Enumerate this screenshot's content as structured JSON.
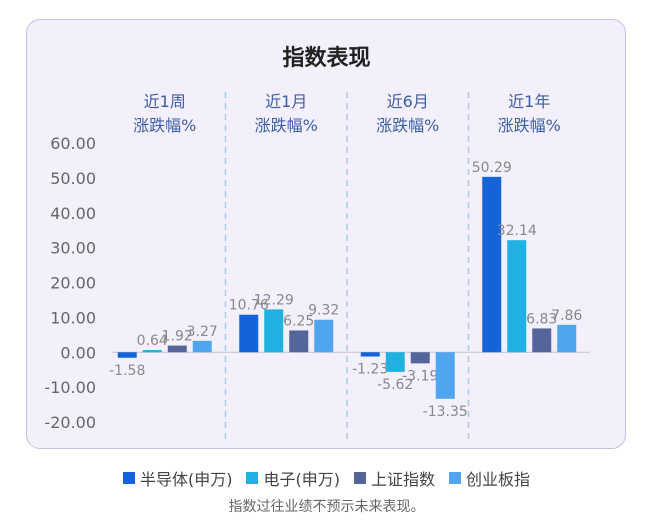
{
  "chart_data": {
    "type": "bar",
    "title": "指数表现",
    "categories": [
      {
        "line1": "近1周",
        "line2": "涨跌幅%"
      },
      {
        "line1": "近1月",
        "line2": "涨跌幅%"
      },
      {
        "line1": "近6月",
        "line2": "涨跌幅%"
      },
      {
        "line1": "近1年",
        "line2": "涨跌幅%"
      }
    ],
    "series": [
      {
        "name": "半导体(申万)",
        "color": "#1463d8",
        "values": [
          -1.58,
          10.76,
          -1.23,
          50.29
        ]
      },
      {
        "name": "电子(申万)",
        "color": "#1fb1e2",
        "values": [
          0.64,
          12.29,
          -5.62,
          32.14
        ]
      },
      {
        "name": "上证指数",
        "color": "#55659a",
        "values": [
          1.92,
          6.25,
          -3.19,
          6.83
        ]
      },
      {
        "name": "创业板指",
        "color": "#4fa5ee",
        "values": [
          3.27,
          9.32,
          -13.35,
          7.86
        ]
      }
    ],
    "value_labels": [
      [
        "-1.58",
        "10.76",
        "-1.23",
        "50.29"
      ],
      [
        "0.64",
        "12.29",
        "-5.62",
        "32.14"
      ],
      [
        "1.92",
        "6.25",
        "-3.19",
        "6.83"
      ],
      [
        "3.27",
        "9.32",
        "-13.35",
        "7.86"
      ]
    ],
    "y_ticks": [
      "60.00",
      "50.00",
      "40.00",
      "30.00",
      "20.00",
      "10.00",
      "0.00",
      "-10.00",
      "-20.00"
    ],
    "y_tick_values": [
      60,
      50,
      40,
      30,
      20,
      10,
      0,
      -10,
      -20
    ],
    "ylim": [
      -20,
      60
    ],
    "grid": false,
    "legend_position": "bottom"
  },
  "footnote": "指数过往业绩不预示未来表现。"
}
